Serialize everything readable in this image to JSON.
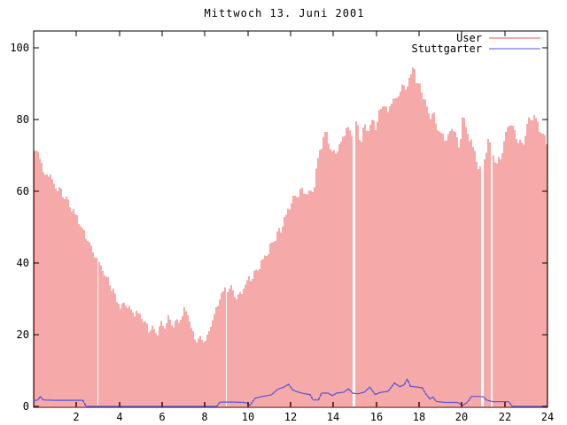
{
  "title": "Mittwoch 13. Juni 2001",
  "colors": {
    "background": "#ffffff",
    "axis": "#000000",
    "user_series": "#ee5353",
    "stuttgarter_series": "#5353d8"
  },
  "legend": {
    "position": "top-right-inside",
    "items": [
      {
        "label": "User",
        "color": "#ee5353"
      },
      {
        "label": "Stuttgarter",
        "color": "#5353d8"
      }
    ]
  },
  "chart_data": {
    "type": "bar",
    "title": "Mittwoch 13. Juni 2001",
    "xlabel": "",
    "ylabel": "",
    "xlim": [
      0,
      24
    ],
    "ylim": [
      0,
      100
    ],
    "x_ticks": [
      2,
      4,
      6,
      8,
      10,
      12,
      14,
      16,
      18,
      20,
      22,
      24
    ],
    "y_ticks": [
      0,
      20,
      40,
      60,
      80,
      100
    ],
    "grid": false,
    "bar_interval_minutes": 5,
    "missing_sample_hours": [
      14.98,
      20.97,
      21.38
    ],
    "series": [
      {
        "name": "User",
        "style": "impulses",
        "color": "#ee5353",
        "points": [
          [
            0.0,
            71
          ],
          [
            0.08,
            71.5
          ],
          [
            0.2,
            70
          ],
          [
            0.35,
            69
          ],
          [
            0.5,
            63
          ],
          [
            0.62,
            65.5
          ],
          [
            0.75,
            65
          ],
          [
            0.9,
            63
          ],
          [
            1.0,
            62
          ],
          [
            1.15,
            60.5
          ],
          [
            1.3,
            59.5
          ],
          [
            1.45,
            58.5
          ],
          [
            1.6,
            57
          ],
          [
            1.75,
            55.5
          ],
          [
            1.9,
            54.5
          ],
          [
            2.05,
            52
          ],
          [
            2.15,
            51.5
          ],
          [
            2.3,
            49.5
          ],
          [
            2.5,
            47
          ],
          [
            2.7,
            44.5
          ],
          [
            2.9,
            42
          ],
          [
            3.1,
            39.5
          ],
          [
            3.3,
            37
          ],
          [
            3.5,
            34.5
          ],
          [
            3.7,
            32
          ],
          [
            3.9,
            29.5
          ],
          [
            4.1,
            27.5
          ],
          [
            4.25,
            29
          ],
          [
            4.4,
            28
          ],
          [
            4.6,
            26.5
          ],
          [
            4.8,
            25.5
          ],
          [
            5.0,
            25
          ],
          [
            5.2,
            23
          ],
          [
            5.4,
            21.5
          ],
          [
            5.6,
            21
          ],
          [
            5.8,
            21
          ],
          [
            5.95,
            23
          ],
          [
            6.1,
            22
          ],
          [
            6.3,
            24.5
          ],
          [
            6.5,
            22.5
          ],
          [
            6.7,
            23
          ],
          [
            6.9,
            25.5
          ],
          [
            7.05,
            26.5
          ],
          [
            7.2,
            26.5
          ],
          [
            7.35,
            22
          ],
          [
            7.5,
            19.5
          ],
          [
            7.7,
            18.5
          ],
          [
            7.9,
            18.5
          ],
          [
            8.1,
            19.5
          ],
          [
            8.2,
            20.5
          ],
          [
            8.35,
            24
          ],
          [
            8.55,
            27
          ],
          [
            8.75,
            31
          ],
          [
            8.95,
            32
          ],
          [
            9.15,
            33.5
          ],
          [
            9.35,
            31.5
          ],
          [
            9.5,
            30
          ],
          [
            9.65,
            31.5
          ],
          [
            9.85,
            34
          ],
          [
            10.0,
            35.5
          ],
          [
            10.2,
            36.5
          ],
          [
            10.4,
            38
          ],
          [
            10.6,
            40
          ],
          [
            10.8,
            41.5
          ],
          [
            11.0,
            44
          ],
          [
            11.2,
            46
          ],
          [
            11.4,
            48
          ],
          [
            11.6,
            50.5
          ],
          [
            11.8,
            53.5
          ],
          [
            11.95,
            56
          ],
          [
            12.1,
            57.5
          ],
          [
            12.3,
            59
          ],
          [
            12.5,
            59.5
          ],
          [
            12.7,
            60.5
          ],
          [
            12.85,
            60
          ],
          [
            13.0,
            59.5
          ],
          [
            13.1,
            61
          ],
          [
            13.2,
            66
          ],
          [
            13.35,
            71
          ],
          [
            13.5,
            74
          ],
          [
            13.65,
            76
          ],
          [
            13.8,
            74.5
          ],
          [
            13.95,
            70.5
          ],
          [
            14.1,
            70.5
          ],
          [
            14.3,
            72
          ],
          [
            14.5,
            76.5
          ],
          [
            14.7,
            77
          ],
          [
            14.9,
            75.5
          ],
          [
            15.05,
            79.5
          ],
          [
            15.25,
            74
          ],
          [
            15.45,
            78
          ],
          [
            15.6,
            77
          ],
          [
            15.75,
            79.5
          ],
          [
            15.95,
            78
          ],
          [
            16.1,
            81
          ],
          [
            16.25,
            83.5
          ],
          [
            16.4,
            84
          ],
          [
            16.55,
            82
          ],
          [
            16.75,
            86
          ],
          [
            16.95,
            85
          ],
          [
            17.15,
            89.5
          ],
          [
            17.35,
            88.5
          ],
          [
            17.5,
            90
          ],
          [
            17.65,
            92.5
          ],
          [
            17.78,
            95.5
          ],
          [
            17.9,
            89
          ],
          [
            18.05,
            89.5
          ],
          [
            18.2,
            86
          ],
          [
            18.35,
            84
          ],
          [
            18.5,
            81
          ],
          [
            18.65,
            82.5
          ],
          [
            18.8,
            78.5
          ],
          [
            19.0,
            76.5
          ],
          [
            19.2,
            75
          ],
          [
            19.35,
            74.5
          ],
          [
            19.5,
            77
          ],
          [
            19.7,
            77
          ],
          [
            19.9,
            71.5
          ],
          [
            20.05,
            82.5
          ],
          [
            20.15,
            79
          ],
          [
            20.3,
            76
          ],
          [
            20.45,
            73.5
          ],
          [
            20.6,
            71.5
          ],
          [
            20.75,
            67
          ],
          [
            20.95,
            66
          ],
          [
            21.1,
            71
          ],
          [
            21.2,
            73.5
          ],
          [
            21.4,
            72
          ],
          [
            21.6,
            67.5
          ],
          [
            21.8,
            69.5
          ],
          [
            22.0,
            74
          ],
          [
            22.15,
            80
          ],
          [
            22.3,
            78
          ],
          [
            22.5,
            76
          ],
          [
            22.65,
            74.5
          ],
          [
            22.8,
            72.5
          ],
          [
            23.0,
            76.5
          ],
          [
            23.15,
            80.5
          ],
          [
            23.3,
            81
          ],
          [
            23.45,
            79.5
          ],
          [
            23.6,
            77.5
          ],
          [
            23.75,
            76
          ],
          [
            23.9,
            74.5
          ],
          [
            24.0,
            73
          ]
        ]
      },
      {
        "name": "Stuttgarter",
        "style": "line",
        "color": "#5353d8",
        "points": [
          [
            0.0,
            1.6
          ],
          [
            0.2,
            1.8
          ],
          [
            0.3,
            2.8
          ],
          [
            0.45,
            1.8
          ],
          [
            1.0,
            1.7
          ],
          [
            1.6,
            1.7
          ],
          [
            2.3,
            1.7
          ],
          [
            2.45,
            0
          ],
          [
            3.5,
            0
          ],
          [
            5.0,
            0
          ],
          [
            6.5,
            0
          ],
          [
            8.55,
            0
          ],
          [
            8.7,
            1.2
          ],
          [
            9.3,
            1.2
          ],
          [
            9.8,
            1.1
          ],
          [
            10.0,
            0.9
          ],
          [
            10.1,
            0.3
          ],
          [
            10.35,
            2.3
          ],
          [
            10.7,
            2.8
          ],
          [
            11.1,
            3.2
          ],
          [
            11.4,
            4.8
          ],
          [
            11.7,
            5.4
          ],
          [
            11.9,
            6.2
          ],
          [
            12.1,
            4.6
          ],
          [
            12.35,
            4.0
          ],
          [
            12.6,
            3.6
          ],
          [
            12.9,
            3.3
          ],
          [
            13.05,
            1.8
          ],
          [
            13.3,
            1.8
          ],
          [
            13.45,
            3.7
          ],
          [
            13.75,
            3.7
          ],
          [
            13.95,
            3.0
          ],
          [
            14.15,
            3.7
          ],
          [
            14.5,
            4.0
          ],
          [
            14.7,
            4.9
          ],
          [
            14.9,
            3.7
          ],
          [
            15.15,
            3.5
          ],
          [
            15.45,
            4.0
          ],
          [
            15.7,
            5.4
          ],
          [
            15.95,
            3.3
          ],
          [
            16.2,
            3.9
          ],
          [
            16.55,
            4.2
          ],
          [
            16.85,
            6.5
          ],
          [
            17.1,
            5.5
          ],
          [
            17.3,
            6.0
          ],
          [
            17.45,
            7.6
          ],
          [
            17.6,
            5.6
          ],
          [
            17.9,
            5.4
          ],
          [
            18.15,
            5.2
          ],
          [
            18.3,
            3.6
          ],
          [
            18.5,
            2.1
          ],
          [
            18.65,
            2.6
          ],
          [
            18.8,
            1.4
          ],
          [
            19.2,
            1.1
          ],
          [
            19.8,
            1.1
          ],
          [
            20.05,
            0.3
          ],
          [
            20.25,
            1.1
          ],
          [
            20.45,
            2.8
          ],
          [
            20.8,
            2.8
          ],
          [
            21.0,
            2.7
          ],
          [
            21.15,
            1.8
          ],
          [
            21.45,
            1.3
          ],
          [
            21.9,
            1.3
          ],
          [
            22.2,
            1.3
          ],
          [
            22.35,
            0
          ],
          [
            23.0,
            0
          ],
          [
            24.0,
            0
          ]
        ]
      }
    ]
  }
}
